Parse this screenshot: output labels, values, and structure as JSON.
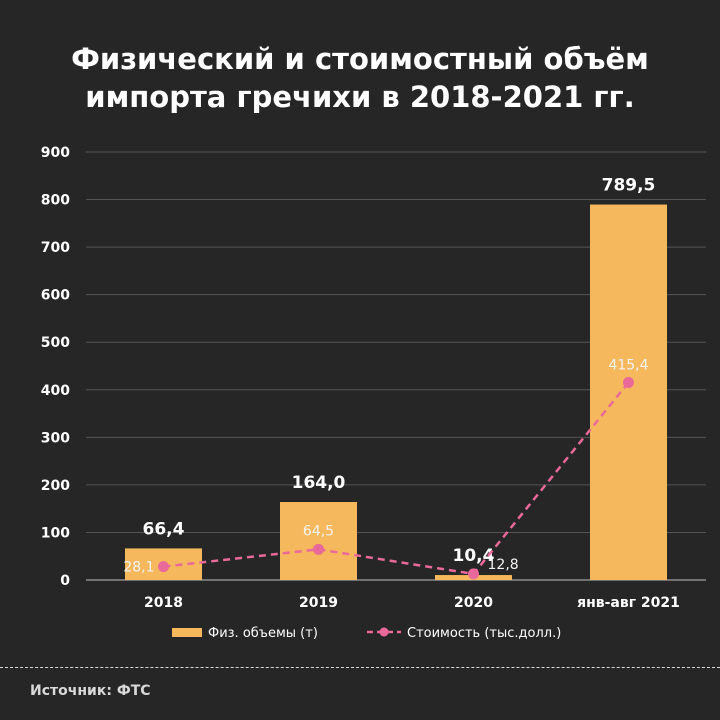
{
  "title": {
    "line1": "Физический и стоимостный объём",
    "line2": "импорта гречихи в 2018-2021 гг."
  },
  "source": "Источник: ФТС",
  "colors": {
    "background": "#262626",
    "bar": "#f6b85c",
    "line": "#e8699a",
    "grid": "#555555",
    "text": "#ffffff"
  },
  "chart_data": {
    "type": "bar",
    "categories": [
      "2018",
      "2019",
      "2020",
      "янв-авг 2021"
    ],
    "series": [
      {
        "name": "Физ. объемы (т)",
        "type": "bar",
        "values": [
          66.4,
          164.0,
          10.4,
          789.5
        ],
        "labels": [
          "66,4",
          "164,0",
          "10,4",
          "789,5"
        ]
      },
      {
        "name": "Стоимость (тыс.долл.)",
        "type": "line",
        "style": "dashed",
        "values": [
          28.1,
          64.5,
          12.8,
          415.4
        ],
        "labels": [
          "28,1",
          "64,5",
          "12,8",
          "415,4"
        ]
      }
    ],
    "ylim": [
      0,
      900
    ],
    "yticks": [
      "0",
      "100",
      "200",
      "300",
      "400",
      "500",
      "600",
      "700",
      "800",
      "900"
    ],
    "grid": true,
    "legend_position": "bottom"
  }
}
